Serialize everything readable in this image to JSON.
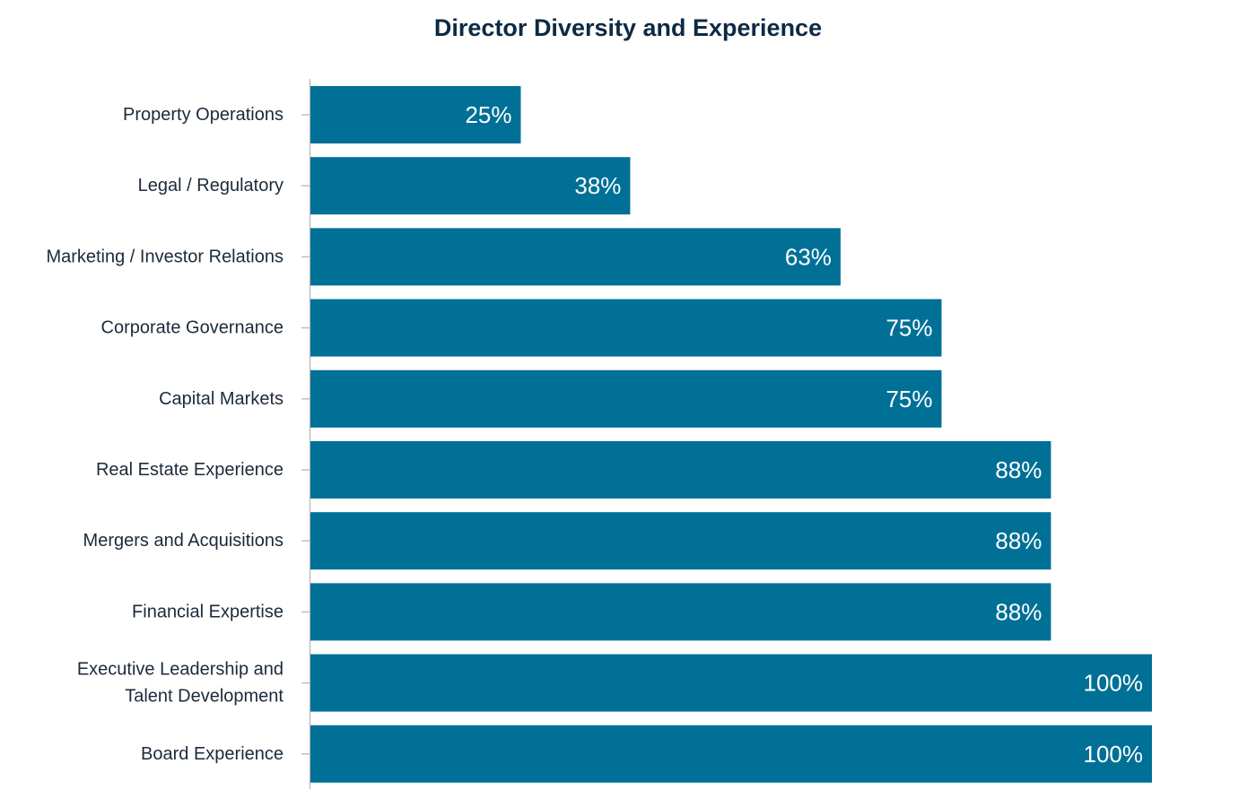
{
  "chart_data": {
    "type": "bar",
    "orientation": "horizontal",
    "title": "Director Diversity and Experience",
    "categories": [
      [
        "Property Operations"
      ],
      [
        "Legal / Regulatory"
      ],
      [
        "Marketing / Investor Relations"
      ],
      [
        "Corporate Governance"
      ],
      [
        "Capital Markets"
      ],
      [
        "Real Estate Experience"
      ],
      [
        "Mergers and Acquisitions"
      ],
      [
        "Financial Expertise"
      ],
      [
        "Executive Leadership and",
        "Talent Development"
      ],
      [
        "Board Experience"
      ]
    ],
    "values": [
      25,
      38,
      63,
      75,
      75,
      88,
      88,
      88,
      100,
      100
    ],
    "value_labels": [
      "25%",
      "38%",
      "63%",
      "75%",
      "75%",
      "88%",
      "88%",
      "88%",
      "100%",
      "100%"
    ],
    "xlim": [
      0,
      100
    ],
    "grid": false,
    "legend": "none",
    "colors": {
      "bar": "#007096",
      "axis": "#bfbfbf",
      "title": "#0d2a45",
      "label": "#1b2a3a",
      "value_label": "#ffffff"
    }
  }
}
